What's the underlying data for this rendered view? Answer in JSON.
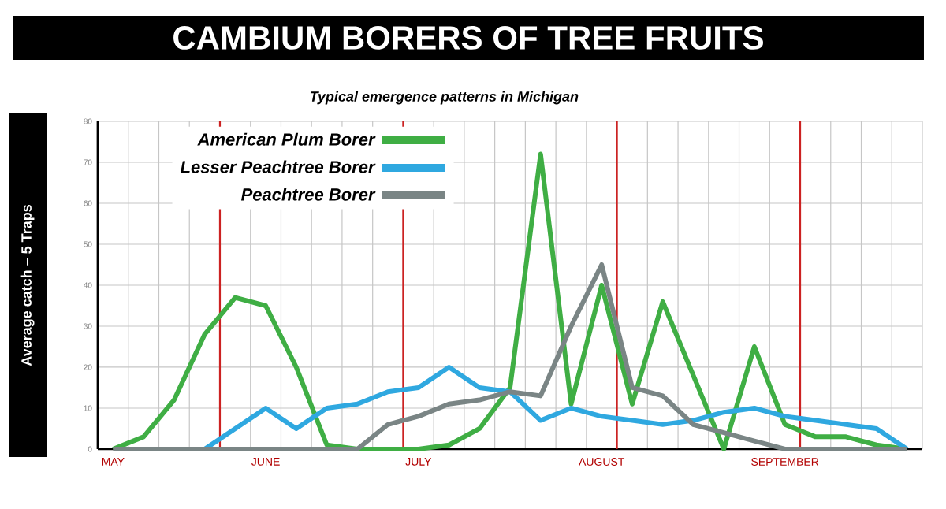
{
  "chart_data": {
    "type": "line",
    "title": "CAMBIUM BORERS OF TREE FRUITS",
    "subtitle": "Typical emergence patterns in Michigan",
    "ylabel": "Average catch – 5 Traps",
    "categories": [
      "MAY",
      null,
      null,
      null,
      null,
      "JUNE",
      null,
      null,
      null,
      null,
      "JULY",
      null,
      null,
      null,
      null,
      null,
      "AUGUST",
      null,
      null,
      null,
      null,
      null,
      "SEPTEMBER",
      null,
      null,
      null,
      null
    ],
    "ylim": [
      0,
      80
    ],
    "yticks": [
      0,
      10,
      20,
      30,
      40,
      50,
      60,
      70,
      80
    ],
    "grid": true,
    "legend": "top left",
    "marker": "none",
    "line_style": "solid",
    "series": [
      {
        "name": "American Plum Borer",
        "color": "#3fae44",
        "values": [
          0,
          3,
          12,
          28,
          37,
          35,
          20,
          1,
          0,
          0,
          0,
          1,
          5,
          15,
          72,
          11,
          40,
          11,
          36,
          18,
          0,
          25,
          6,
          3,
          3,
          1,
          0
        ]
      },
      {
        "name": "Lesser Peachtree Borer",
        "color": "#2fa8e0",
        "values": [
          null,
          null,
          0,
          0,
          5,
          10,
          5,
          10,
          11,
          14,
          15,
          20,
          15,
          14,
          7,
          10,
          8,
          7,
          6,
          7,
          9,
          10,
          8,
          7,
          6,
          5,
          0
        ]
      },
      {
        "name": "Peachtree Borer",
        "color": "#7a8585",
        "values": [
          0,
          0,
          0,
          0,
          0,
          0,
          0,
          0,
          0,
          6,
          8,
          11,
          12,
          14,
          13,
          30,
          45,
          15,
          13,
          6,
          4,
          2,
          0,
          0,
          0,
          0,
          0
        ]
      }
    ]
  }
}
